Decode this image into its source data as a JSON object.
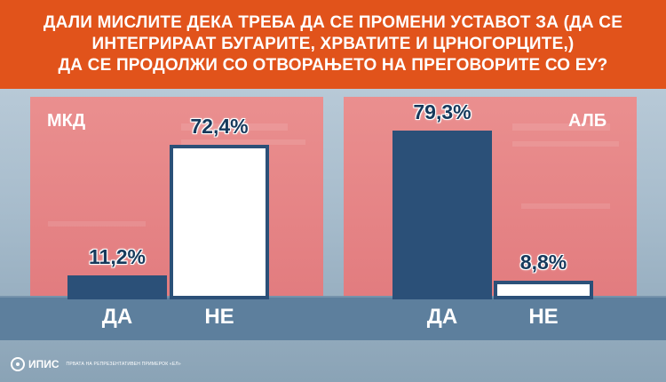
{
  "title_lines": [
    "ДАЛИ МИСЛИТЕ ДЕКА ТРЕБА ДА СЕ ПРОМЕНИ УСТАВОТ ЗА (ДА СЕ",
    "ИНТЕГРИРААТ БУГАРИТЕ, ХРВАТИТЕ И ЦРНОГОРЦИТЕ,)",
    "ДА СЕ ПРОДОЛЖИ СО ОТВОРАЊЕТО НА ПРЕГОВОРИТЕ СО ЕУ?"
  ],
  "colors": {
    "title_bg": "#e1531b",
    "panel_bg": "#e6868a",
    "bar_dark": "#2b5078",
    "bar_light": "#ffffff",
    "band": "#5d7f9d"
  },
  "chart_data": [
    {
      "type": "bar",
      "panel_label": "МКД",
      "categories": [
        "ДА",
        "НЕ"
      ],
      "values": [
        11.2,
        72.4
      ],
      "value_labels": [
        "11,2%",
        "72,4%"
      ],
      "ylim": [
        0,
        100
      ],
      "bar_styles": [
        "dark",
        "light"
      ]
    },
    {
      "type": "bar",
      "panel_label": "АЛБ",
      "categories": [
        "ДА",
        "НЕ"
      ],
      "values": [
        79.3,
        8.8
      ],
      "value_labels": [
        "79,3%",
        "8,8%"
      ],
      "ylim": [
        0,
        100
      ],
      "bar_styles": [
        "dark",
        "light"
      ]
    }
  ],
  "footer": {
    "logo_icon": "ipis-logo-icon",
    "brand": "ИПИС",
    "tagline": "ПРВАТА НА РЕПРЕЗЕНТАТИВЕН ПРИМЕРОК «ЕЛ»"
  }
}
